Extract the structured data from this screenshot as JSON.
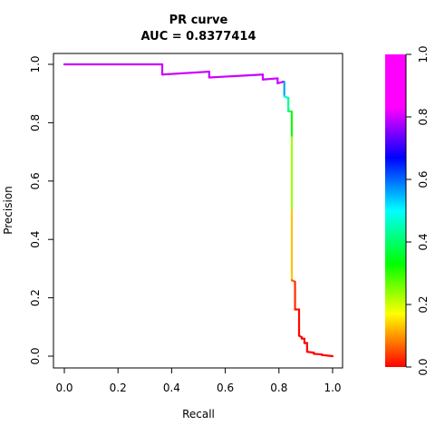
{
  "chart_data": {
    "type": "line",
    "title": "PR curve",
    "subtitle": "AUC = 0.8377414",
    "xlabel": "Recall",
    "ylabel": "Precision",
    "xlim": [
      0,
      1
    ],
    "ylim": [
      0,
      1
    ],
    "xticks": [
      "0.0",
      "0.2",
      "0.4",
      "0.6",
      "0.8",
      "1.0"
    ],
    "yticks": [
      "0.0",
      "0.2",
      "0.4",
      "0.6",
      "0.8",
      "1.0"
    ],
    "grid": false,
    "colorbar": {
      "ticks": [
        "0.0",
        "0.2",
        "0.4",
        "0.6",
        "0.8",
        "1.0"
      ],
      "range": [
        0,
        1
      ],
      "palette": "rainbow: red (0) → yellow → green → cyan → blue → magenta (1)"
    },
    "series": [
      {
        "points": [
          {
            "x": 0.0,
            "y": 1.0,
            "t": 1.0
          },
          {
            "x": 0.365,
            "y": 1.0,
            "t": 1.0
          },
          {
            "x": 0.365,
            "y": 0.965,
            "t": 1.0
          },
          {
            "x": 0.54,
            "y": 0.975,
            "t": 1.0
          },
          {
            "x": 0.54,
            "y": 0.955,
            "t": 1.0
          },
          {
            "x": 0.74,
            "y": 0.965,
            "t": 1.0
          },
          {
            "x": 0.74,
            "y": 0.948,
            "t": 1.0
          },
          {
            "x": 0.795,
            "y": 0.952,
            "t": 1.0
          },
          {
            "x": 0.795,
            "y": 0.935,
            "t": 0.98
          },
          {
            "x": 0.815,
            "y": 0.94,
            "t": 0.9
          },
          {
            "x": 0.82,
            "y": 0.94,
            "t": 0.62
          },
          {
            "x": 0.82,
            "y": 0.89,
            "t": 0.5
          },
          {
            "x": 0.835,
            "y": 0.885,
            "t": 0.45
          },
          {
            "x": 0.835,
            "y": 0.84,
            "t": 0.4
          },
          {
            "x": 0.848,
            "y": 0.838,
            "t": 0.36
          },
          {
            "x": 0.848,
            "y": 0.75,
            "t": 0.28
          },
          {
            "x": 0.848,
            "y": 0.5,
            "t": 0.18
          },
          {
            "x": 0.848,
            "y": 0.26,
            "t": 0.08
          },
          {
            "x": 0.86,
            "y": 0.255,
            "t": 0.04
          },
          {
            "x": 0.86,
            "y": 0.16,
            "t": 0.02
          },
          {
            "x": 0.875,
            "y": 0.16,
            "t": 0.01
          },
          {
            "x": 0.875,
            "y": 0.07,
            "t": 0.0
          },
          {
            "x": 0.885,
            "y": 0.065,
            "t": 0.0
          },
          {
            "x": 0.885,
            "y": 0.06,
            "t": 0.0
          },
          {
            "x": 0.895,
            "y": 0.06,
            "t": 0.0
          },
          {
            "x": 0.895,
            "y": 0.045,
            "t": 0.0
          },
          {
            "x": 0.905,
            "y": 0.045,
            "t": 0.0
          },
          {
            "x": 0.905,
            "y": 0.015,
            "t": 0.0
          },
          {
            "x": 0.93,
            "y": 0.012,
            "t": 0.0
          },
          {
            "x": 0.93,
            "y": 0.008,
            "t": 0.0
          },
          {
            "x": 0.96,
            "y": 0.006,
            "t": 0.0
          },
          {
            "x": 0.96,
            "y": 0.004,
            "t": 0.0
          },
          {
            "x": 1.0,
            "y": 0.0,
            "t": 0.0
          }
        ]
      }
    ]
  }
}
